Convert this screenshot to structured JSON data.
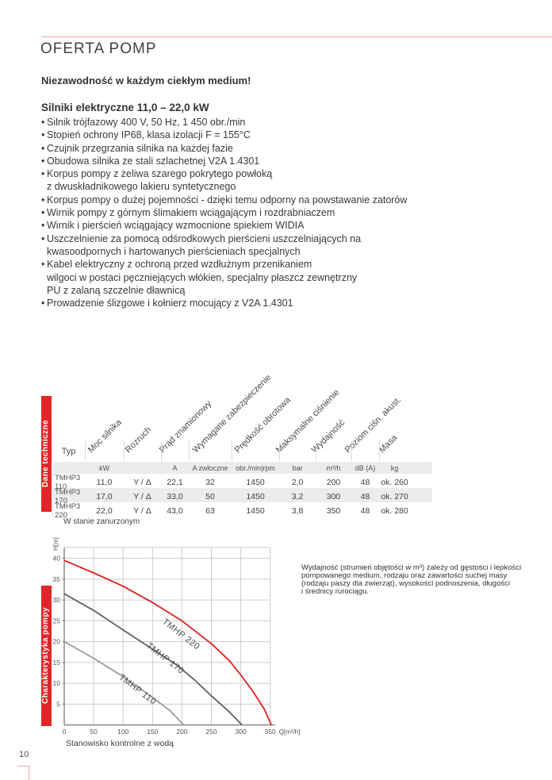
{
  "header": {
    "title": "OFERTA POMP"
  },
  "intro": {
    "tagline": "Niezawodność w każdym ciekłym medium!",
    "heading": "Silniki elektryczne 11,0 – 22,0 kW",
    "features": [
      {
        "b": "•",
        "t": "Silnik trójfazowy 400 V, 50 Hz, 1 450 obr./min"
      },
      {
        "b": "•",
        "t": "Stopień ochrony IP68, klasa izolacji F = 155°C"
      },
      {
        "b": "•",
        "t": "Czujnik przegrzania silnika na każdej fazie"
      },
      {
        "b": "•",
        "t": "Obudowa silnika ze stali szlachetnej V2A 1.4301"
      },
      {
        "b": "•",
        "t": "Korpus pompy z żeliwa szarego pokrytego powłoką"
      },
      {
        "b": "",
        "t": "z dwuskładnikowego lakieru syntetycznego"
      },
      {
        "b": "•",
        "t": "Korpus pompy o dużej pojemności - dzięki temu odporny na powstawanie zatorów"
      },
      {
        "b": "•",
        "t": "Wirnik pompy z górnym ślimakiem wciągającym i rozdrabniaczem"
      },
      {
        "b": "•",
        "t": "Wirnik i pierścień wciągający wzmocnione spiekiem WIDIA"
      },
      {
        "b": "•",
        "t": "Uszczelnienie za pomocą odśrodkowych pierścieni uszczelniających na"
      },
      {
        "b": "",
        "t": "kwasoodpornych i hartowanych pierścieniach specjalnych"
      },
      {
        "b": "•",
        "t": "Kabel elektryczny z ochroną przed wzdłużnym przenikaniem"
      },
      {
        "b": "",
        "t": "wilgoci w postaci pęczniejących włókien, specjalny płaszcz zewnętrzny"
      },
      {
        "b": "",
        "t": "PU z zalaną szczelnie dławnicą"
      },
      {
        "b": "•",
        "t": "Prowadzenie ślizgowe i kołnierz mocujący z V2A 1.4301"
      }
    ]
  },
  "table": {
    "section_label": "Dane techniczne",
    "col_headers": [
      "Typ",
      "Moc silnika",
      "Rozruch",
      "Prąd znamionowy",
      "Wymagane zabezpieczenie",
      "Prędkość obrotowa",
      "Maksymalne ciśnienie",
      "Wydajność",
      "Poziom ciśn. akust.",
      "Masa"
    ],
    "units": [
      "",
      "kW",
      "",
      "A",
      "A zwłoczne",
      "obr./min|rpm",
      "bar",
      "m³/h",
      "dB (A)",
      "kg"
    ],
    "rows": [
      [
        "TMHP3 110",
        "11,0",
        "Y / Δ",
        "22,1",
        "32",
        "1450",
        "2,0",
        "200",
        "48",
        "ok. 260"
      ],
      [
        "TMHP3 170",
        "17,0",
        "Y / Δ",
        "33,0",
        "50",
        "1450",
        "3,2",
        "300",
        "48",
        "ok. 270"
      ],
      [
        "TMHP3 220",
        "22,0",
        "Y / Δ",
        "43,0",
        "63",
        "1450",
        "3,8",
        "350",
        "48",
        "ok. 280"
      ]
    ],
    "footnote": "W stanie zanurzonym"
  },
  "chart_data": {
    "type": "line",
    "section_label": "Charakterystyka pompy",
    "ylabel": "H[m]",
    "xlabel": "Q[m³/h]",
    "caption": "Stanowisko kontrolne z wodą",
    "xlim": [
      0,
      350
    ],
    "ylim": [
      0,
      42.6
    ],
    "x_ticks": [
      0,
      50,
      100,
      150,
      200,
      250,
      300,
      350
    ],
    "y_ticks": [
      5,
      10,
      15,
      20,
      25,
      30,
      35,
      40
    ],
    "grid": "full-light-gray",
    "legend_position": "labels-on-curves",
    "colors": {
      "grid": "#cccccc",
      "axis": "#7a7a7a"
    },
    "series": [
      {
        "name": "TMHP 220",
        "color": "#e01f1f",
        "points": [
          [
            0,
            39.5
          ],
          [
            50,
            36.5
          ],
          [
            100,
            33.3
          ],
          [
            150,
            29.4
          ],
          [
            200,
            25.0
          ],
          [
            250,
            19.5
          ],
          [
            280,
            15.5
          ],
          [
            300,
            12.0
          ],
          [
            320,
            8.2
          ],
          [
            340,
            3.8
          ],
          [
            352,
            0
          ]
        ],
        "label_at": [
          166,
          24.6
        ],
        "label_angle": 38
      },
      {
        "name": "TMHP 170",
        "color": "#5f5f5f",
        "points": [
          [
            0,
            31.5
          ],
          [
            50,
            27.5
          ],
          [
            100,
            22.8
          ],
          [
            150,
            18.2
          ],
          [
            190,
            14.5
          ],
          [
            220,
            11.0
          ],
          [
            250,
            7.0
          ],
          [
            280,
            3.2
          ],
          [
            302,
            0
          ]
        ],
        "label_at": [
          139,
          18.8
        ],
        "label_angle": 38
      },
      {
        "name": "TMHP 110",
        "color": "#9b9b9b",
        "points": [
          [
            0,
            20.0
          ],
          [
            50,
            16.0
          ],
          [
            100,
            11.6
          ],
          [
            150,
            6.6
          ],
          [
            180,
            3.4
          ],
          [
            203,
            0
          ]
        ],
        "label_at": [
          92,
          11.2
        ],
        "label_angle": 37
      }
    ]
  },
  "note": {
    "lines": [
      "Wydajność (strumień objętości w m³) zależy od gęstości i lepkości",
      "pompowanego medium, rodzaju oraz zawartości suchej masy",
      "(rodzaju paszy dla zwierząt), wysokości podnoszenia, długości",
      "i średnicy rurociągu."
    ]
  },
  "footer": {
    "page_number": "10"
  }
}
